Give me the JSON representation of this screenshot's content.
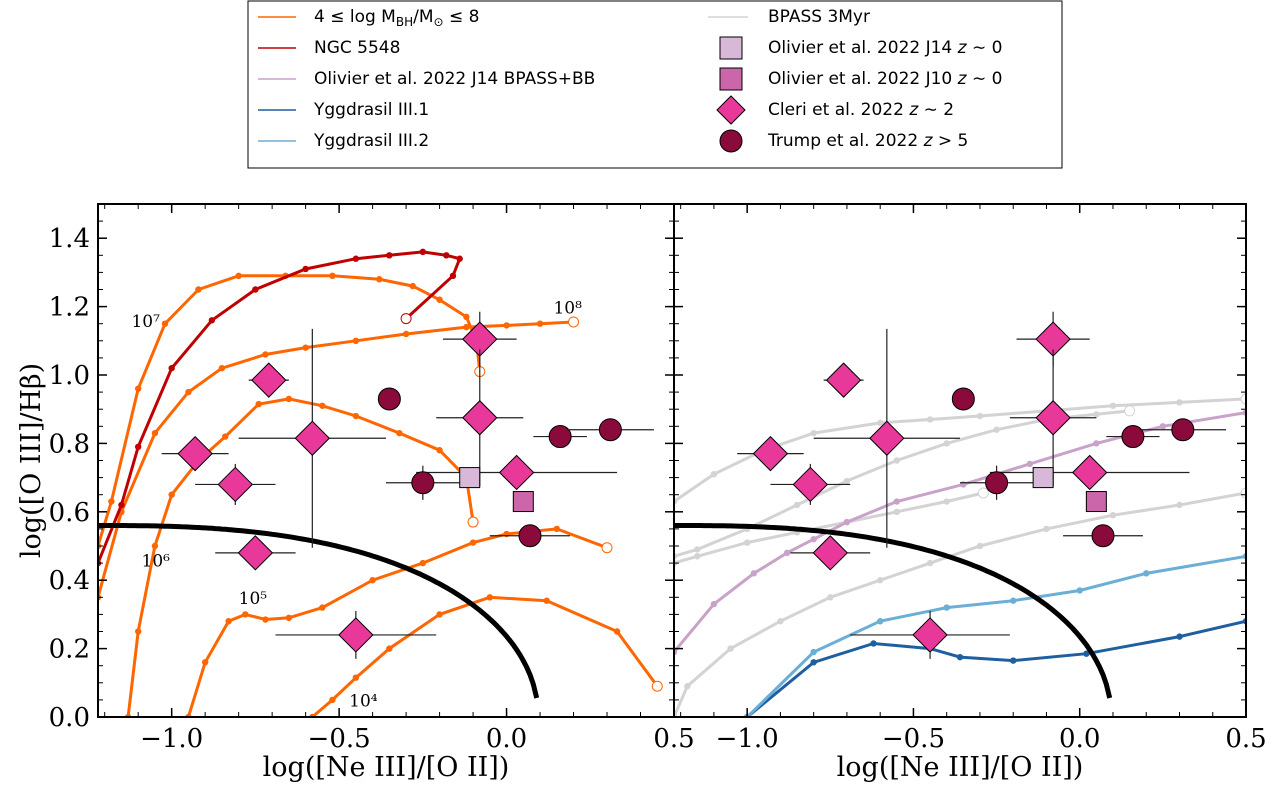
{
  "chart_data": [
    {
      "type": "line",
      "panel": "left",
      "xlabel": "log([Ne III]/[O II])",
      "ylabel": "log([O III]/Hβ)",
      "xlim": [
        -1.22,
        0.5
      ],
      "ylim": [
        0.0,
        1.5
      ],
      "xticks": [
        "−1.0",
        "−0.5",
        "0.0",
        "0.5"
      ],
      "yticks": [
        "0.0",
        "0.2",
        "0.4",
        "0.6",
        "0.8",
        "1.0",
        "1.2",
        "1.4"
      ],
      "annotations": [
        "10⁴",
        "10⁵",
        "10⁶",
        "10⁷",
        "10⁸"
      ],
      "series": [
        {
          "name": "4 ≤ log M_BH/M_⊙ ≤ 8",
          "color": "#ff6600",
          "x": [
            -0.58,
            -0.52,
            -0.45,
            -0.35,
            -0.2,
            -0.05,
            0.12,
            0.33,
            0.45
          ],
          "y": [
            0.0,
            0.05,
            0.115,
            0.2,
            0.3,
            0.35,
            0.34,
            0.25,
            0.09
          ]
        },
        {
          "color": "#ff6600",
          "x": [
            -0.95,
            -0.9,
            -0.83,
            -0.78,
            -0.72,
            -0.65,
            -0.55,
            -0.4,
            -0.25,
            -0.1,
            0.0,
            0.15,
            0.3
          ],
          "y": [
            0.0,
            0.16,
            0.28,
            0.3,
            0.285,
            0.29,
            0.32,
            0.4,
            0.45,
            0.51,
            0.535,
            0.55,
            0.495
          ]
        },
        {
          "color": "#ff6600",
          "x": [
            -1.13,
            -1.1,
            -1.05,
            -1.0,
            -0.92,
            -0.84,
            -0.74,
            -0.65,
            -0.55,
            -0.45,
            -0.32,
            -0.2,
            -0.12,
            -0.1
          ],
          "y": [
            0.0,
            0.25,
            0.5,
            0.65,
            0.75,
            0.82,
            0.915,
            0.93,
            0.91,
            0.88,
            0.83,
            0.78,
            0.7,
            0.57
          ]
        },
        {
          "color": "#ff6600",
          "x": [
            -1.22,
            -1.15,
            -1.05,
            -0.95,
            -0.85,
            -0.72,
            -0.6,
            -0.45,
            -0.3,
            -0.12,
            0.0,
            0.1,
            0.2
          ],
          "y": [
            0.35,
            0.6,
            0.83,
            0.95,
            1.02,
            1.06,
            1.08,
            1.1,
            1.12,
            1.14,
            1.145,
            1.15,
            1.155
          ]
        },
        {
          "color": "#ff6600",
          "x": [
            -1.22,
            -1.18,
            -1.1,
            -1.02,
            -0.92,
            -0.8,
            -0.66,
            -0.52,
            -0.38,
            -0.28,
            -0.2,
            -0.12,
            -0.09,
            -0.08
          ],
          "y": [
            0.5,
            0.63,
            0.96,
            1.15,
            1.25,
            1.29,
            1.29,
            1.29,
            1.28,
            1.26,
            1.22,
            1.17,
            1.1,
            1.01
          ]
        },
        {
          "name": "NGC 5548",
          "color": "#c00000",
          "x": [
            -1.22,
            -1.15,
            -1.1,
            -1.0,
            -0.88,
            -0.75,
            -0.6,
            -0.45,
            -0.35,
            -0.25,
            -0.18,
            -0.14,
            -0.16,
            -0.3
          ],
          "y": [
            0.45,
            0.62,
            0.79,
            1.02,
            1.16,
            1.25,
            1.31,
            1.34,
            1.35,
            1.36,
            1.35,
            1.34,
            1.29,
            1.165
          ]
        }
      ],
      "points": [
        {
          "series": "Cleri et al. 2022 z~2",
          "x": -0.93,
          "y": 0.77,
          "xerr": 0.1,
          "yerr": 0.0
        },
        {
          "series": "Cleri et al. 2022 z~2",
          "x": -0.81,
          "y": 0.68,
          "xerr": 0.12,
          "yerr": 0.06
        },
        {
          "series": "Cleri et al. 2022 z~2",
          "x": -0.75,
          "y": 0.48,
          "xerr": 0.12,
          "yerr": 0.0
        },
        {
          "series": "Cleri et al. 2022 z~2",
          "x": -0.71,
          "y": 0.985,
          "xerr": 0.06,
          "yerr": 0.05
        },
        {
          "series": "Cleri et al. 2022 z~2",
          "x": -0.58,
          "y": 0.815,
          "xerr": 0.22,
          "yerr": 0.32
        },
        {
          "series": "Cleri et al. 2022 z~2",
          "x": -0.45,
          "y": 0.24,
          "xerr": 0.24,
          "yerr": 0.07
        },
        {
          "series": "Cleri et al. 2022 z~2",
          "x": -0.08,
          "y": 1.105,
          "xerr": 0.11,
          "yerr": 0.08
        },
        {
          "series": "Cleri et al. 2022 z~2",
          "x": -0.08,
          "y": 0.875,
          "xerr": 0.13,
          "yerr": 0.2
        },
        {
          "series": "Cleri et al. 2022 z~2",
          "x": 0.03,
          "y": 0.715,
          "xerr": 0.3,
          "yerr": 0.0
        },
        {
          "series": "Trump et al. 2022 z>5",
          "x": -0.35,
          "y": 0.93,
          "xerr": 0.0,
          "yerr": 0.0
        },
        {
          "series": "Trump et al. 2022 z>5",
          "x": -0.25,
          "y": 0.685,
          "xerr": 0.11,
          "yerr": 0.05
        },
        {
          "series": "Trump et al. 2022 z>5",
          "x": 0.16,
          "y": 0.82,
          "xerr": 0.08,
          "yerr": 0.0
        },
        {
          "series": "Trump et al. 2022 z>5",
          "x": 0.31,
          "y": 0.84,
          "xerr": 0.13,
          "yerr": 0.0
        },
        {
          "series": "Trump et al. 2022 z>5",
          "x": 0.07,
          "y": 0.53,
          "xerr": 0.12,
          "yerr": 0.0
        },
        {
          "series": "Olivier et al. 2022 J14 z~0",
          "x": -0.11,
          "y": 0.7,
          "xerr": 0.0,
          "yerr": 0.0
        },
        {
          "series": "Olivier et al. 2022 J10 z~0",
          "x": 0.05,
          "y": 0.63,
          "xerr": 0.0,
          "yerr": 0.0
        }
      ]
    },
    {
      "type": "line",
      "panel": "right",
      "xlabel": "log([Ne III]/[O II])",
      "xlim": [
        -1.22,
        0.5
      ],
      "ylim": [
        0.0,
        1.5
      ],
      "xticks": [
        "−1.0",
        "−0.5",
        "0.0",
        "0.5"
      ],
      "series": [
        {
          "name": "BPASS 3Myr",
          "color": "#d3d3d3",
          "x": [
            -1.22,
            -1.1,
            -0.95,
            -0.8,
            -0.6,
            -0.45,
            -0.3,
            -0.1,
            0.1,
            0.3,
            0.5
          ],
          "y": [
            0.63,
            0.71,
            0.78,
            0.83,
            0.86,
            0.87,
            0.88,
            0.895,
            0.91,
            0.92,
            0.93
          ]
        },
        {
          "color": "#d3d3d3",
          "x": [
            -1.22,
            -1.15,
            -1.0,
            -0.85,
            -0.7,
            -0.55,
            -0.4,
            -0.25,
            -0.1,
            0.05,
            0.15
          ],
          "y": [
            0.47,
            0.49,
            0.55,
            0.62,
            0.69,
            0.75,
            0.8,
            0.84,
            0.87,
            0.885,
            0.895
          ]
        },
        {
          "color": "#d3d3d3",
          "x": [
            -1.22,
            -1.15,
            -1.0,
            -0.85,
            -0.7,
            -0.55,
            -0.4,
            -0.29
          ],
          "y": [
            0.45,
            0.47,
            0.51,
            0.54,
            0.57,
            0.6,
            0.63,
            0.655
          ]
        },
        {
          "color": "#d3d3d3",
          "x": [
            -1.22,
            -1.18,
            -1.05,
            -0.9,
            -0.75,
            -0.6,
            -0.45,
            -0.3,
            -0.1,
            0.1,
            0.3,
            0.5
          ],
          "y": [
            0.0,
            0.09,
            0.2,
            0.28,
            0.35,
            0.4,
            0.45,
            0.5,
            0.55,
            0.59,
            0.62,
            0.655
          ]
        },
        {
          "name": "Olivier et al. 2022 J14 BPASS+BB",
          "color": "#c8a2c8",
          "x": [
            -1.22,
            -1.1,
            -0.98,
            -0.88,
            -0.8,
            -0.7,
            -0.55,
            -0.35,
            -0.15,
            0.05,
            0.25,
            0.5
          ],
          "y": [
            0.19,
            0.33,
            0.42,
            0.48,
            0.52,
            0.57,
            0.63,
            0.68,
            0.74,
            0.8,
            0.85,
            0.89
          ]
        },
        {
          "name": "Yggdrasil III.1",
          "color": "#1f5fa0",
          "x": [
            -1.0,
            -0.8,
            -0.62,
            -0.45,
            -0.36,
            -0.2,
            0.02,
            0.3,
            0.5
          ],
          "y": [
            0.0,
            0.16,
            0.215,
            0.2,
            0.175,
            0.165,
            0.185,
            0.235,
            0.28
          ]
        },
        {
          "name": "Yggdrasil III.2",
          "color": "#6baed6",
          "x": [
            -1.0,
            -0.8,
            -0.6,
            -0.4,
            -0.2,
            0.0,
            0.2,
            0.5
          ],
          "y": [
            0.0,
            0.19,
            0.28,
            0.32,
            0.34,
            0.37,
            0.42,
            0.47
          ]
        }
      ]
    }
  ],
  "legend": {
    "left": [
      {
        "label": "4 ≤ log M",
        "sub": "BH",
        "label2": "/M",
        "sub2": "⊙",
        "label3": " ≤ 8",
        "color": "#ff6600",
        "kind": "line"
      },
      {
        "label": "NGC 5548",
        "color": "#c00000",
        "kind": "line"
      },
      {
        "label": "Olivier et al. 2022 J14 BPASS+BB",
        "color": "#c8a2c8",
        "kind": "line"
      },
      {
        "label": "Yggdrasil III.1",
        "color": "#1f5fa0",
        "kind": "line"
      },
      {
        "label": "Yggdrasil III.2",
        "color": "#6baed6",
        "kind": "line"
      }
    ],
    "right": [
      {
        "label": "BPASS 3Myr",
        "color": "#d3d3d3",
        "kind": "line"
      },
      {
        "label": "Olivier et al. 2022 J14 ",
        "z": "z",
        "tail": " ∼ 0",
        "color": "#d8b8d8",
        "kind": "square"
      },
      {
        "label": "Olivier et al. 2022 J10 ",
        "z": "z",
        "tail": " ∼ 0",
        "color": "#cc66aa",
        "kind": "square"
      },
      {
        "label": "Cleri et al. 2022 ",
        "z": "z",
        "tail": " ∼ 2",
        "color": "#e8399a",
        "kind": "diamond"
      },
      {
        "label": "Trump et al. 2022 ",
        "z": "z",
        "tail": " > 5",
        "color": "#8b0a3c",
        "kind": "circle"
      }
    ]
  },
  "colors": {
    "demarcation": "#000000",
    "cleri": "#e8399a",
    "trump": "#8b0a3c",
    "j14": "#d8b8d8",
    "j10": "#cc66aa"
  }
}
